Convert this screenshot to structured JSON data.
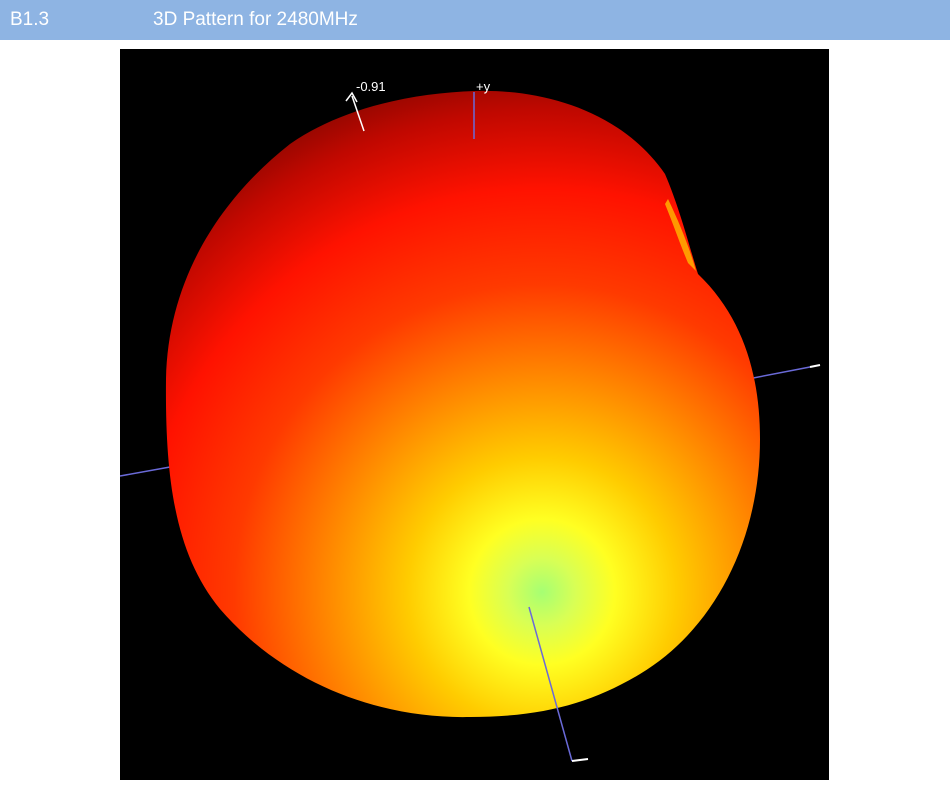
{
  "section": {
    "number": "B1.3",
    "title": "3D Pattern for 2480MHz"
  },
  "figure": {
    "icon": "radiation-pattern-3d",
    "background_color": "#000000",
    "surface_colors": [
      "#7a0a00",
      "#ff1a00",
      "#ff6a00",
      "#ffcc00",
      "#ffff33",
      "#99ff66"
    ],
    "axis_color": "#6a6ad8",
    "labels": {
      "max_value": "-0.91",
      "y_axis": "+y"
    }
  }
}
